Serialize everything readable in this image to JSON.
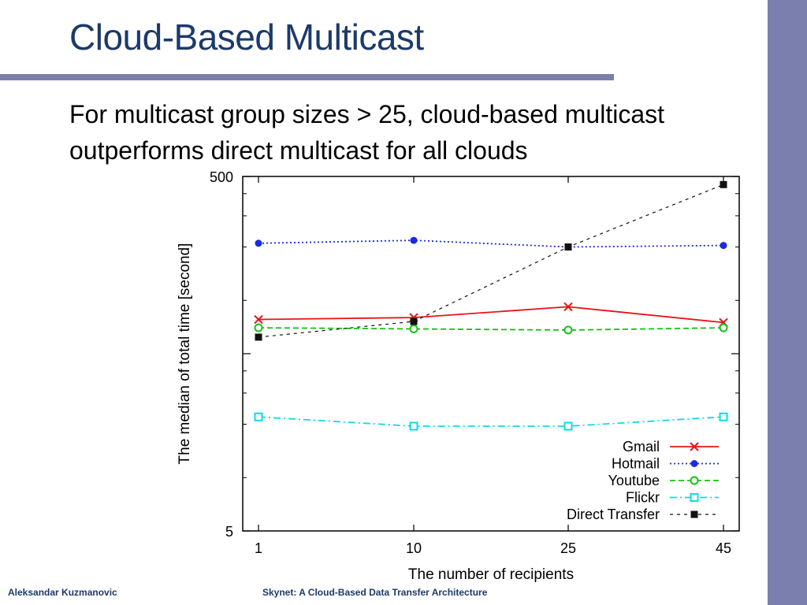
{
  "slide": {
    "title": "Cloud-Based Multicast",
    "body": "For multicast group sizes > 25, cloud-based multicast outperforms direct multicast for all clouds",
    "footer_left": "Aleksandar Kuzmanovic",
    "footer_center": "Skynet: A Cloud-Based Data Transfer Architecture"
  },
  "colors": {
    "title": "#1b3a6b",
    "accent_bar": "#7b7fae"
  },
  "chart_data": {
    "type": "line",
    "title": "",
    "xlabel": "The number of recipients",
    "ylabel": "The median of total time [second]",
    "x_categories": [
      "1",
      "10",
      "25",
      "45"
    ],
    "y_scale": "log",
    "ylim": [
      5,
      500
    ],
    "y_tick_labels": [
      "5",
      "500"
    ],
    "legend_position": "bottom-right",
    "grid": false,
    "series": [
      {
        "name": "Gmail",
        "color": "#e8141a",
        "dash": "",
        "marker": "x",
        "values": [
          78,
          80,
          92,
          75
        ]
      },
      {
        "name": "Hotmail",
        "color": "#1a2bde",
        "dash": "2,3",
        "marker": "dot",
        "values": [
          210,
          218,
          200,
          204
        ]
      },
      {
        "name": "Youtube",
        "color": "#12c412",
        "dash": "7,4",
        "marker": "circle",
        "values": [
          70,
          69,
          68,
          70
        ]
      },
      {
        "name": "Flickr",
        "color": "#12d8e8",
        "dash": "9,4,2,4",
        "marker": "square-open",
        "values": [
          22,
          19.5,
          19.5,
          22
        ]
      },
      {
        "name": "Direct Transfer",
        "color": "#111111",
        "dash": "4,5",
        "marker": "square",
        "values": [
          62,
          76,
          200,
          450
        ]
      }
    ]
  }
}
